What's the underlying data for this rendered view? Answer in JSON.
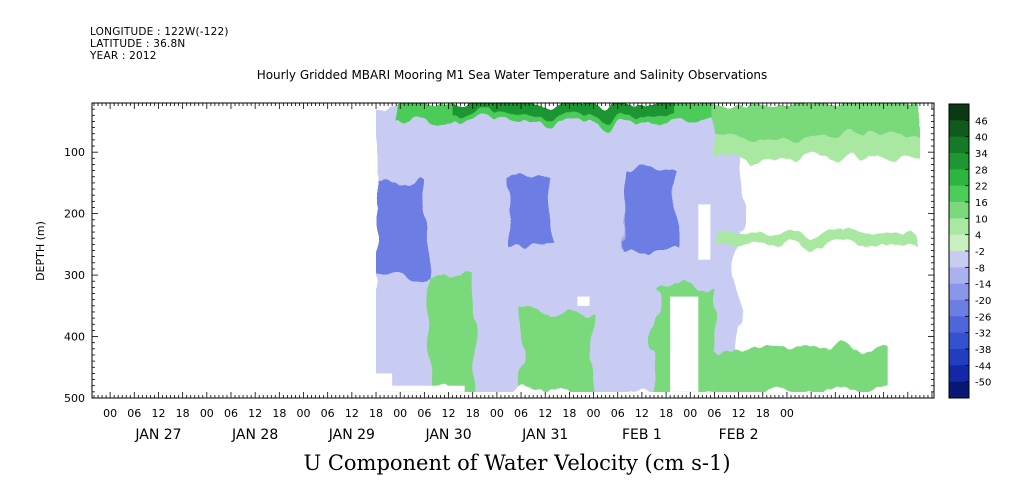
{
  "header": {
    "longitude": "LONGITUDE : 122W(-122)",
    "latitude": "LATITUDE : 36.8N",
    "year": "YEAR : 2012"
  },
  "chart_data": {
    "type": "heatmap",
    "title": "Hourly Gridded MBARI Mooring M1 Sea Water Temperature and Salinity Observations",
    "subtitle": "U Component of Water Velocity (cm s-1)",
    "ylabel": "DEPTH (m)",
    "xlabel": "",
    "ylim": [
      500,
      20
    ],
    "y_ticks": [
      100,
      200,
      300,
      400,
      500
    ],
    "x_hour_ticks": [
      "00",
      "06",
      "12",
      "18",
      "00",
      "06",
      "12",
      "18",
      "00",
      "06",
      "12",
      "18",
      "00",
      "06",
      "12",
      "18",
      "00",
      "06",
      "12",
      "18",
      "00",
      "06",
      "12",
      "18",
      "00",
      "06",
      "12",
      "18",
      "00"
    ],
    "x_day_labels": [
      "JAN 27",
      "JAN 28",
      "JAN 29",
      "JAN 30",
      "JAN 31",
      "FEB  1",
      "FEB  2"
    ],
    "colorbar": {
      "levels": [
        46,
        40,
        34,
        28,
        22,
        16,
        10,
        4,
        -2,
        -8,
        -14,
        -20,
        -26,
        -32,
        -38,
        -44,
        -50
      ],
      "colors": [
        "#0a3a12",
        "#0f5a1c",
        "#157a26",
        "#1e9632",
        "#2eb440",
        "#4ccc58",
        "#7ad97a",
        "#a8e8a0",
        "#c9f0c0",
        "#c8ccf2",
        "#a9b1ef",
        "#8a96ea",
        "#6c7de3",
        "#4f65da",
        "#3451cf",
        "#203ec0",
        "#1228a6",
        "#081774"
      ]
    },
    "regions": [
      {
        "t0": 66,
        "t1": 156,
        "d0": 20,
        "d1": 490,
        "value": -8
      },
      {
        "t0": 66,
        "t1": 79,
        "d0": 150,
        "d1": 300,
        "value": -26
      },
      {
        "t0": 128,
        "t1": 140,
        "d0": 130,
        "d1": 260,
        "value": -26
      },
      {
        "t0": 99,
        "t1": 110,
        "d0": 140,
        "d1": 250,
        "value": -26
      },
      {
        "t0": 71,
        "t1": 152,
        "d0": 20,
        "d1": 50,
        "value": 16
      },
      {
        "t0": 85,
        "t1": 140,
        "d0": 20,
        "d1": 40,
        "value": 28
      },
      {
        "t0": 79,
        "t1": 91,
        "d0": 300,
        "d1": 490,
        "value": 10
      },
      {
        "t0": 102,
        "t1": 120,
        "d0": 360,
        "d1": 490,
        "value": 10
      },
      {
        "t0": 135,
        "t1": 150,
        "d0": 320,
        "d1": 490,
        "value": 10
      },
      {
        "t0": 150,
        "t1": 201,
        "d0": 20,
        "d1": 75,
        "value": 10
      },
      {
        "t0": 150,
        "t1": 201,
        "d0": 75,
        "d1": 110,
        "value": 4
      },
      {
        "t0": 150,
        "t1": 201,
        "d0": 230,
        "d1": 250,
        "value": 4
      },
      {
        "t0": 150,
        "t1": 201,
        "d0": 420,
        "d1": 490,
        "value": 10
      }
    ],
    "missing": [
      {
        "t0": 66,
        "t1": 70,
        "d0": 460,
        "d1": 490
      },
      {
        "t0": 70,
        "t1": 88,
        "d0": 480,
        "d1": 490
      },
      {
        "t0": 116,
        "t1": 119,
        "d0": 335,
        "d1": 350
      },
      {
        "t0": 139,
        "t1": 146,
        "d0": 335,
        "d1": 490
      },
      {
        "t0": 146,
        "t1": 149,
        "d0": 185,
        "d1": 275
      },
      {
        "t0": 193,
        "t1": 201,
        "d0": 395,
        "d1": 490
      }
    ]
  }
}
